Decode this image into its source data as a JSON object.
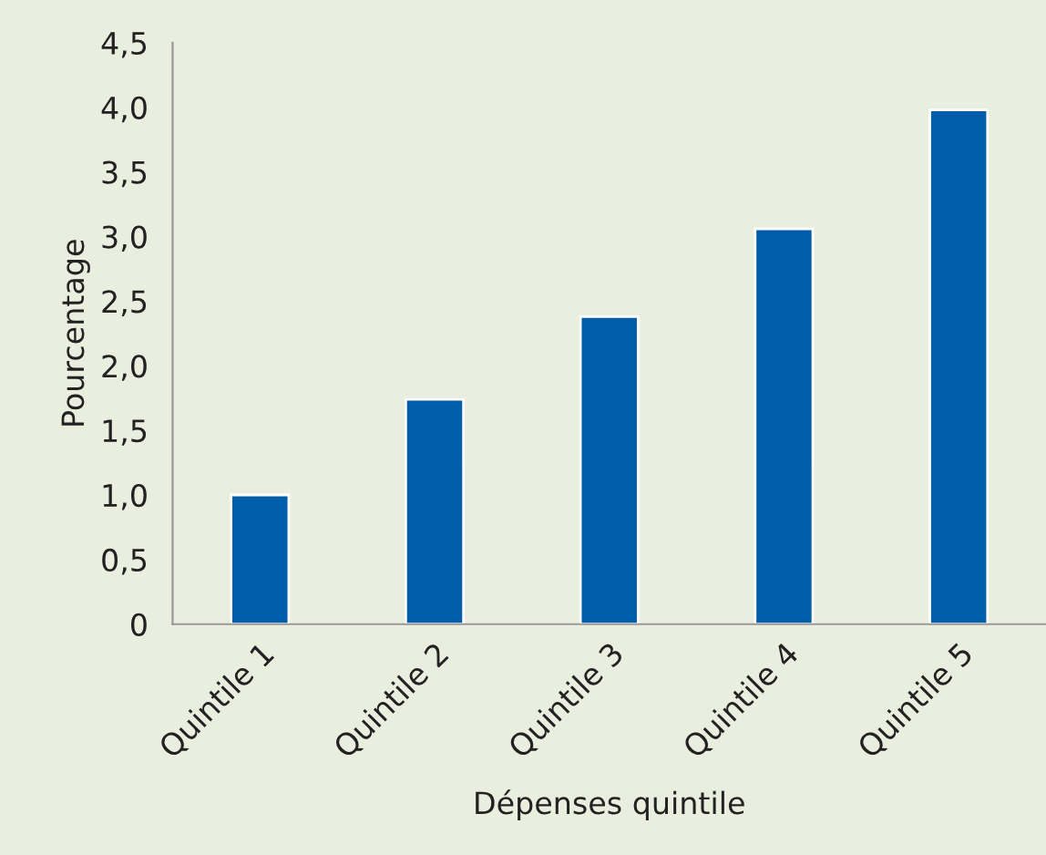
{
  "chart_data": {
    "type": "bar",
    "xlabel": "Dépenses quintile",
    "ylabel": "Pourcentage",
    "categories": [
      "Quintile 1",
      "Quintile 2",
      "Quintile 3",
      "Quintile 4",
      "Quintile 5"
    ],
    "values": [
      1.0,
      1.74,
      2.38,
      3.06,
      3.98
    ],
    "color": "#005daa",
    "ylim": [
      0,
      4.5
    ],
    "yticks": [
      0,
      {
        "value": 0.5,
        "label": "0,5"
      },
      {
        "value": 1,
        "label": "1,0"
      },
      {
        "value": 1.5,
        "label": "1,5"
      },
      {
        "value": 2,
        "label": "2,0"
      },
      {
        "value": 2.5,
        "label": "2,5"
      },
      {
        "value": 3,
        "label": "3,0"
      },
      {
        "value": 3.5,
        "label": "3,5"
      },
      {
        "value": 4,
        "label": "4,0"
      },
      {
        "value": 4.5,
        "label": "4,5"
      }
    ],
    "grid": false,
    "legend": false
  }
}
